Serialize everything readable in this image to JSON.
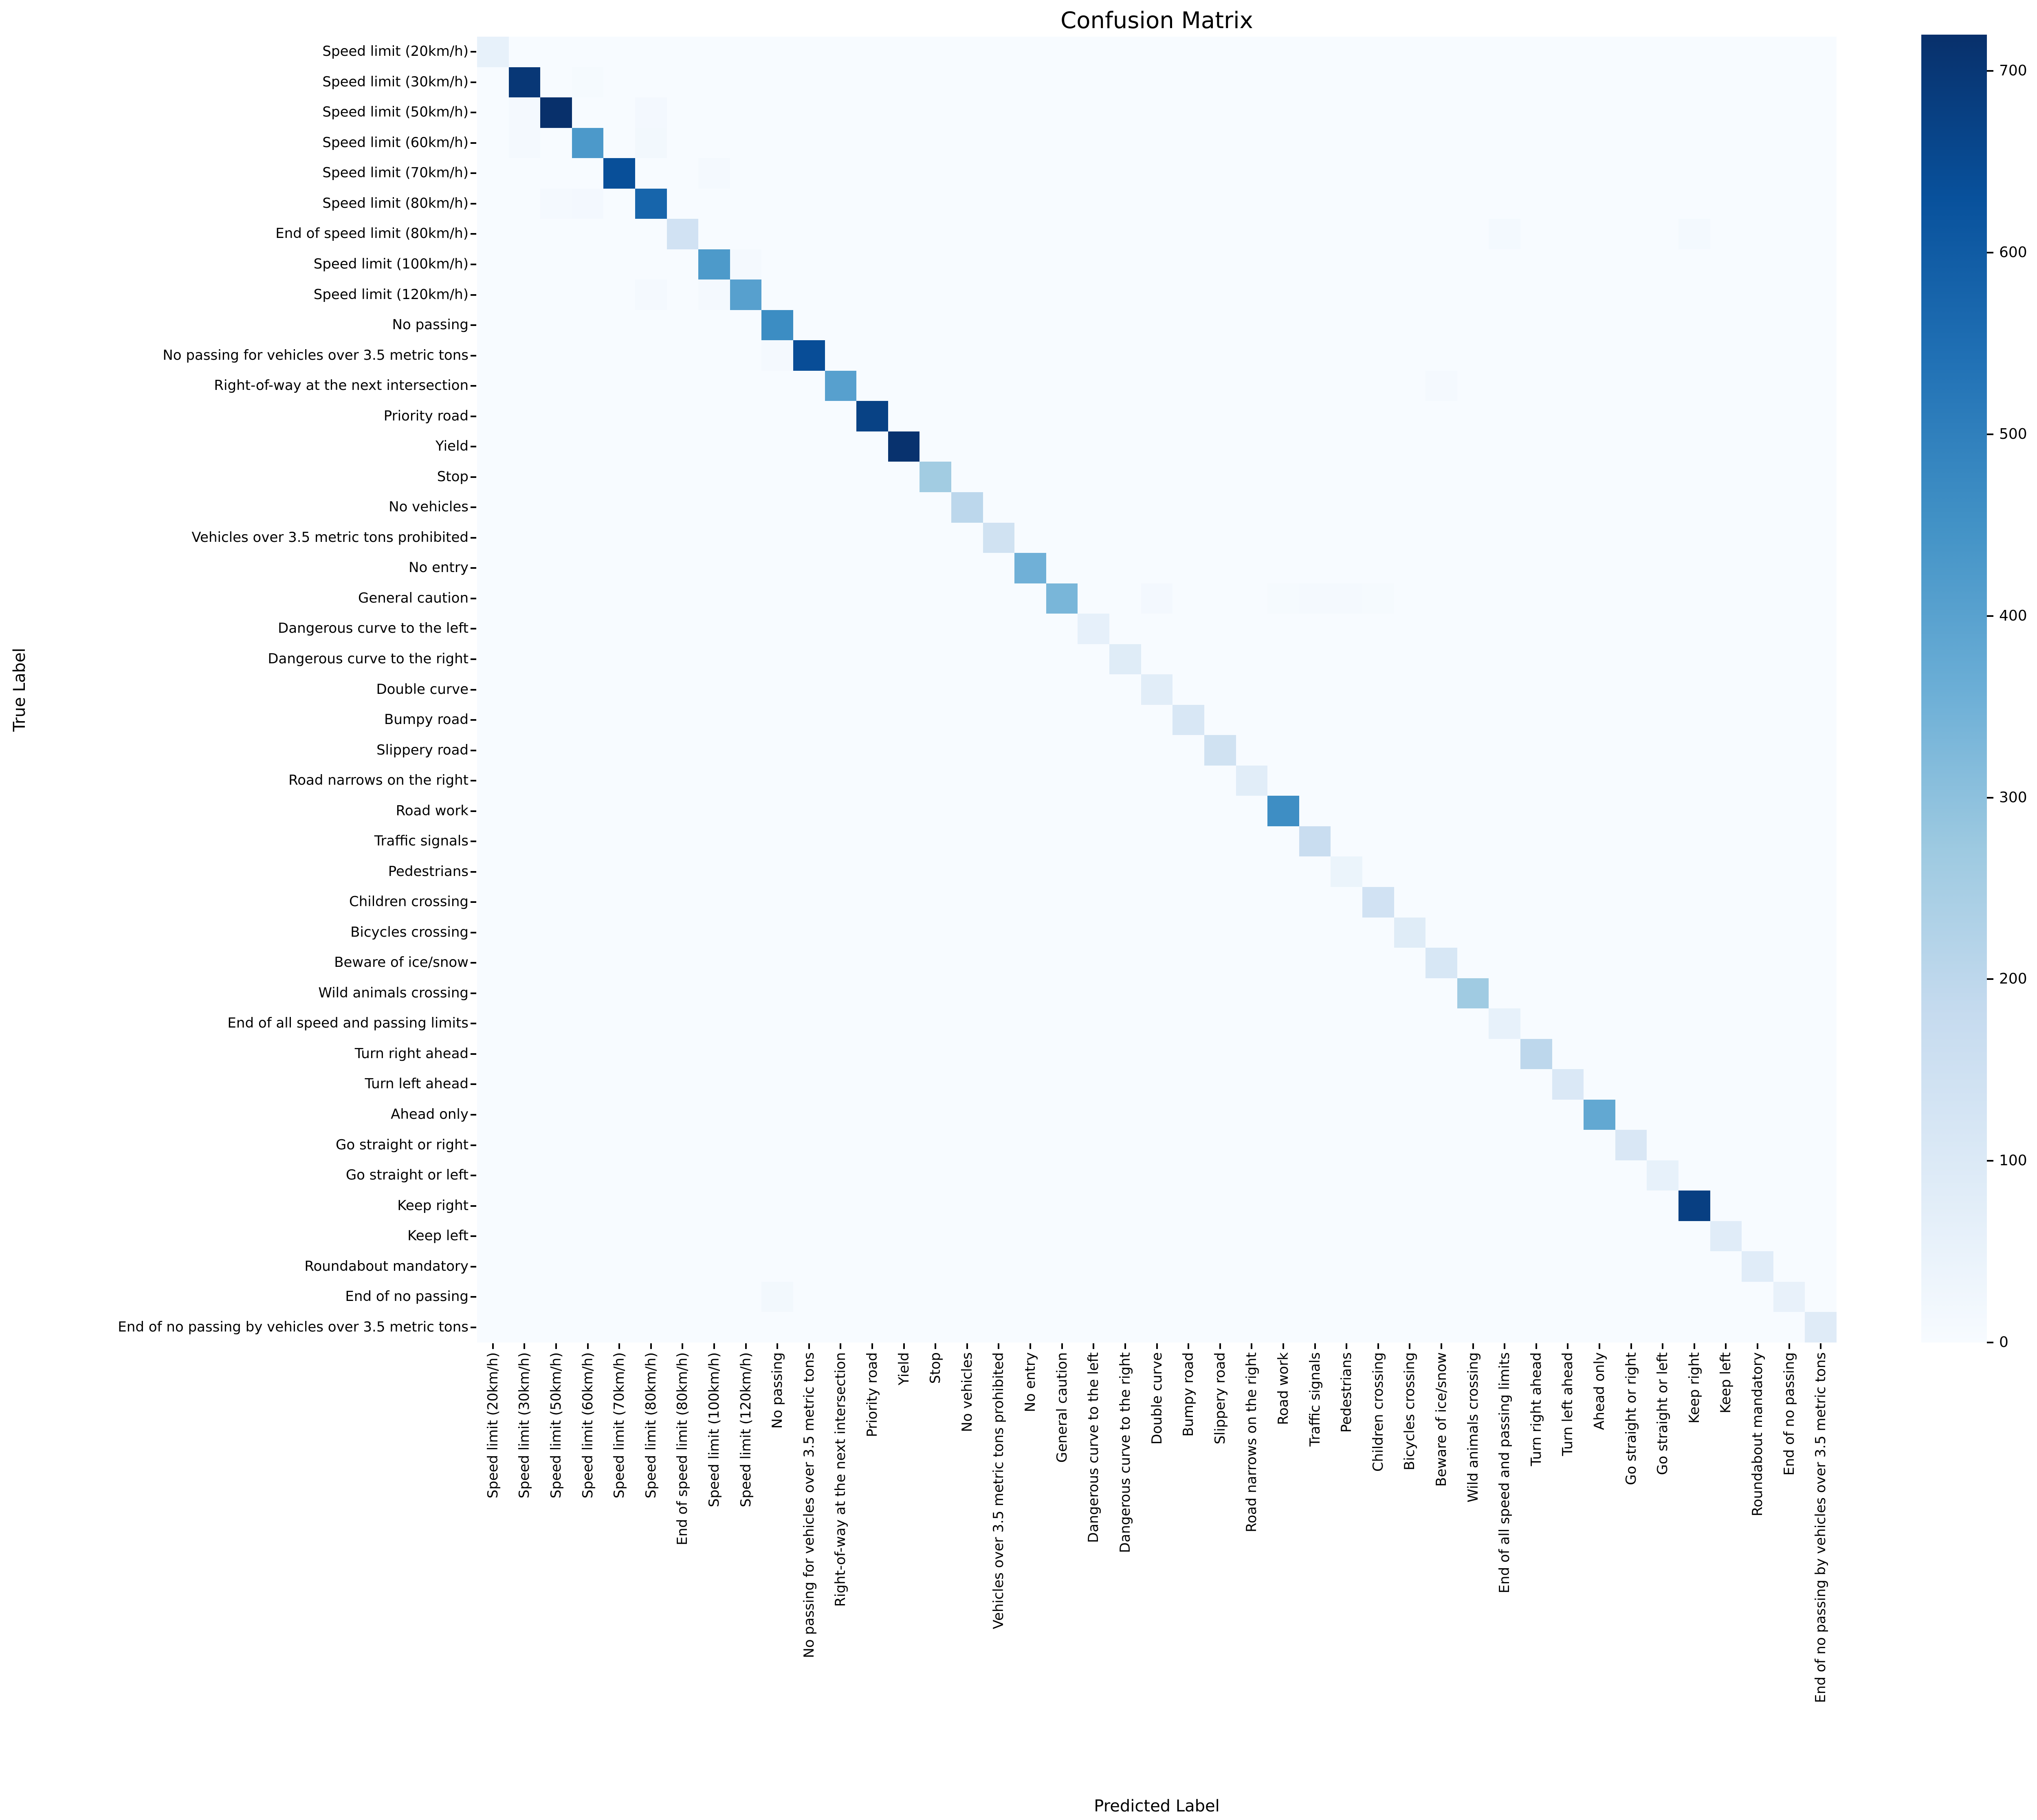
{
  "title": "Confusion Matrix",
  "axes": {
    "x_label": "Predicted Label",
    "y_label": "True Label"
  },
  "classes": [
    "Speed limit (20km/h)",
    "Speed limit (30km/h)",
    "Speed limit (50km/h)",
    "Speed limit (60km/h)",
    "Speed limit (70km/h)",
    "Speed limit (80km/h)",
    "End of speed limit (80km/h)",
    "Speed limit (100km/h)",
    "Speed limit (120km/h)",
    "No passing",
    "No passing for vehicles over 3.5 metric tons",
    "Right-of-way at the next intersection",
    "Priority road",
    "Yield",
    "Stop",
    "No vehicles",
    "Vehicles over 3.5 metric tons prohibited",
    "No entry",
    "General caution",
    "Dangerous curve to the left",
    "Dangerous curve to the right",
    "Double curve",
    "Bumpy road",
    "Slippery road",
    "Road narrows on the right",
    "Road work",
    "Traffic signals",
    "Pedestrians",
    "Children crossing",
    "Bicycles crossing",
    "Beware of ice/snow",
    "Wild animals crossing",
    "End of all speed and passing limits",
    "Turn right ahead",
    "Turn left ahead",
    "Ahead only",
    "Go straight or right",
    "Go straight or left",
    "Keep right",
    "Keep left",
    "Roundabout mandatory",
    "End of no passing",
    "End of no passing by vehicles over 3.5 metric tons"
  ],
  "chart_data": {
    "type": "heatmap",
    "title": "Confusion Matrix",
    "xlabel": "Predicted Label",
    "ylabel": "True Label",
    "n_classes": 43,
    "colormap": "Blues",
    "vmin": 0,
    "vmax": 720,
    "legend_position": "right-colorbar",
    "grid": false,
    "diagonal": [
      56,
      700,
      720,
      428,
      636,
      575,
      138,
      425,
      405,
      465,
      640,
      405,
      672,
      715,
      262,
      202,
      143,
      352,
      335,
      60,
      85,
      80,
      112,
      142,
      78,
      460,
      170,
      42,
      140,
      85,
      115,
      265,
      58,
      200,
      105,
      380,
      110,
      58,
      678,
      82,
      84,
      55,
      88
    ],
    "off_diagonal": [
      [
        1,
        3,
        8
      ],
      [
        2,
        1,
        12
      ],
      [
        2,
        5,
        15
      ],
      [
        3,
        1,
        10
      ],
      [
        3,
        5,
        18
      ],
      [
        4,
        7,
        12
      ],
      [
        5,
        2,
        12
      ],
      [
        5,
        3,
        15
      ],
      [
        6,
        32,
        14
      ],
      [
        6,
        38,
        14
      ],
      [
        7,
        8,
        12
      ],
      [
        8,
        5,
        10
      ],
      [
        8,
        7,
        12
      ],
      [
        10,
        9,
        10
      ],
      [
        11,
        30,
        12
      ],
      [
        18,
        21,
        16
      ],
      [
        18,
        25,
        8
      ],
      [
        18,
        26,
        12
      ],
      [
        18,
        27,
        10
      ],
      [
        18,
        28,
        8
      ],
      [
        41,
        9,
        18
      ]
    ],
    "colorbar_ticks": [
      0,
      100,
      200,
      300,
      400,
      500,
      600,
      700
    ]
  },
  "colors": {
    "background": "#ffffff",
    "zero_cell": "#f7fbff",
    "text": "#000000",
    "cmap_stops": [
      "#f7fbff",
      "#deebf7",
      "#c6dbef",
      "#9ecae1",
      "#6baed6",
      "#4292c6",
      "#2171b5",
      "#08519c",
      "#08306b"
    ]
  }
}
